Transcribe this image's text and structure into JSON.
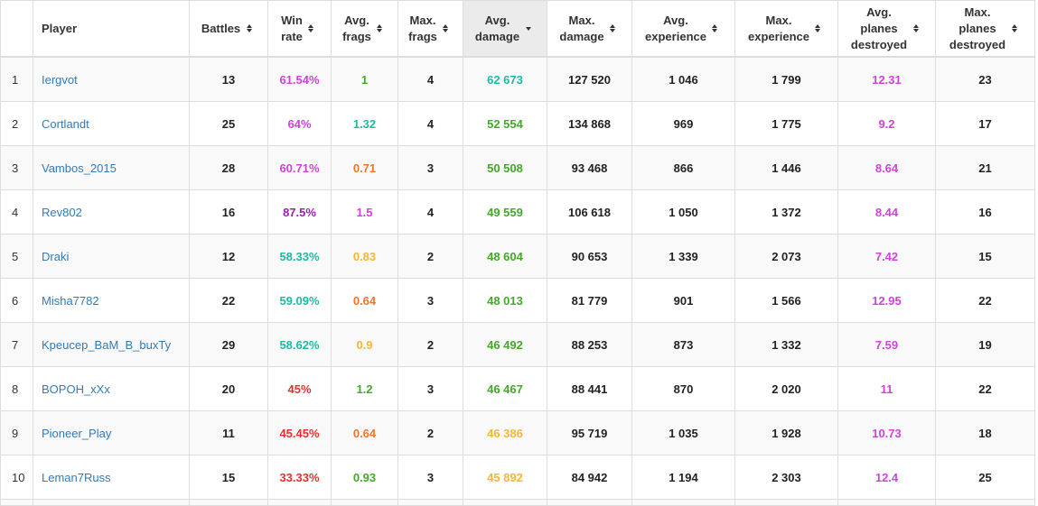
{
  "columns": [
    {
      "label": "",
      "sortable": false
    },
    {
      "label": "Player",
      "sortable": false
    },
    {
      "label": "Battles",
      "sortable": true
    },
    {
      "label": "Win rate",
      "sortable": true
    },
    {
      "label": "Avg. frags",
      "sortable": true
    },
    {
      "label": "Max. frags",
      "sortable": true
    },
    {
      "label": "Avg. damage",
      "sortable": true,
      "sorted": "desc"
    },
    {
      "label": "Max. damage",
      "sortable": true
    },
    {
      "label": "Avg. experience",
      "sortable": true
    },
    {
      "label": "Max. experience",
      "sortable": true
    },
    {
      "label": "Avg. planes destroyed",
      "sortable": true
    },
    {
      "label": "Max. planes destroyed",
      "sortable": true
    }
  ],
  "colors": {
    "purple": "#d042d9",
    "violet": "#9b1faf",
    "teal": "#1fbaa4",
    "green": "#44a82a",
    "orange": "#f0742a",
    "yellow": "#f5b53a",
    "red": "#e53030",
    "link": "#337ab7"
  },
  "rows": [
    {
      "rank": "1",
      "player": "Iergvot",
      "battles": "13",
      "win_rate": "61.54%",
      "win_color": "purple",
      "avg_frags": "1",
      "frags_color": "green",
      "max_frags": "4",
      "avg_damage": "62 673",
      "damage_color": "teal",
      "max_damage": "127 520",
      "avg_exp": "1 046",
      "max_exp": "1 799",
      "avg_planes": "12.31",
      "planes_color": "purple",
      "max_planes": "23"
    },
    {
      "rank": "2",
      "player": "Cortlandt",
      "battles": "25",
      "win_rate": "64%",
      "win_color": "purple",
      "avg_frags": "1.32",
      "frags_color": "teal",
      "max_frags": "4",
      "avg_damage": "52 554",
      "damage_color": "green",
      "max_damage": "134 868",
      "avg_exp": "969",
      "max_exp": "1 775",
      "avg_planes": "9.2",
      "planes_color": "purple",
      "max_planes": "17"
    },
    {
      "rank": "3",
      "player": "Vambos_2015",
      "battles": "28",
      "win_rate": "60.71%",
      "win_color": "purple",
      "avg_frags": "0.71",
      "frags_color": "orange",
      "max_frags": "3",
      "avg_damage": "50 508",
      "damage_color": "green",
      "max_damage": "93 468",
      "avg_exp": "866",
      "max_exp": "1 446",
      "avg_planes": "8.64",
      "planes_color": "purple",
      "max_planes": "21"
    },
    {
      "rank": "4",
      "player": "Rev802",
      "battles": "16",
      "win_rate": "87.5%",
      "win_color": "violet",
      "avg_frags": "1.5",
      "frags_color": "purple",
      "max_frags": "4",
      "avg_damage": "49 559",
      "damage_color": "green",
      "max_damage": "106 618",
      "avg_exp": "1 050",
      "max_exp": "1 372",
      "avg_planes": "8.44",
      "planes_color": "purple",
      "max_planes": "16"
    },
    {
      "rank": "5",
      "player": "Draki",
      "battles": "12",
      "win_rate": "58.33%",
      "win_color": "teal",
      "avg_frags": "0.83",
      "frags_color": "yellow",
      "max_frags": "2",
      "avg_damage": "48 604",
      "damage_color": "green",
      "max_damage": "90 653",
      "avg_exp": "1 339",
      "max_exp": "2 073",
      "avg_planes": "7.42",
      "planes_color": "purple",
      "max_planes": "15"
    },
    {
      "rank": "6",
      "player": "Misha7782",
      "battles": "22",
      "win_rate": "59.09%",
      "win_color": "teal",
      "avg_frags": "0.64",
      "frags_color": "orange",
      "max_frags": "3",
      "avg_damage": "48 013",
      "damage_color": "green",
      "max_damage": "81 779",
      "avg_exp": "901",
      "max_exp": "1 566",
      "avg_planes": "12.95",
      "planes_color": "purple",
      "max_planes": "22"
    },
    {
      "rank": "7",
      "player": "Kpeucep_BaM_B_buxTy",
      "battles": "29",
      "win_rate": "58.62%",
      "win_color": "teal",
      "avg_frags": "0.9",
      "frags_color": "yellow",
      "max_frags": "2",
      "avg_damage": "46 492",
      "damage_color": "green",
      "max_damage": "88 253",
      "avg_exp": "873",
      "max_exp": "1 332",
      "avg_planes": "7.59",
      "planes_color": "purple",
      "max_planes": "19"
    },
    {
      "rank": "8",
      "player": "BOPOH_xXx",
      "battles": "20",
      "win_rate": "45%",
      "win_color": "red",
      "avg_frags": "1.2",
      "frags_color": "green",
      "max_frags": "3",
      "avg_damage": "46 467",
      "damage_color": "green",
      "max_damage": "88 441",
      "avg_exp": "870",
      "max_exp": "2 020",
      "avg_planes": "11",
      "planes_color": "purple",
      "max_planes": "22"
    },
    {
      "rank": "9",
      "player": "Pioneer_Play",
      "battles": "11",
      "win_rate": "45.45%",
      "win_color": "red",
      "avg_frags": "0.64",
      "frags_color": "orange",
      "max_frags": "2",
      "avg_damage": "46 386",
      "damage_color": "yellow",
      "max_damage": "95 719",
      "avg_exp": "1 035",
      "max_exp": "1 928",
      "avg_planes": "10.73",
      "planes_color": "purple",
      "max_planes": "18"
    },
    {
      "rank": "10",
      "player": "Leman7Russ",
      "battles": "15",
      "win_rate": "33.33%",
      "win_color": "red",
      "avg_frags": "0.93",
      "frags_color": "green",
      "max_frags": "3",
      "avg_damage": "45 892",
      "damage_color": "yellow",
      "max_damage": "84 942",
      "avg_exp": "1 194",
      "max_exp": "2 303",
      "avg_planes": "12.4",
      "planes_color": "purple",
      "max_planes": "25"
    }
  ]
}
